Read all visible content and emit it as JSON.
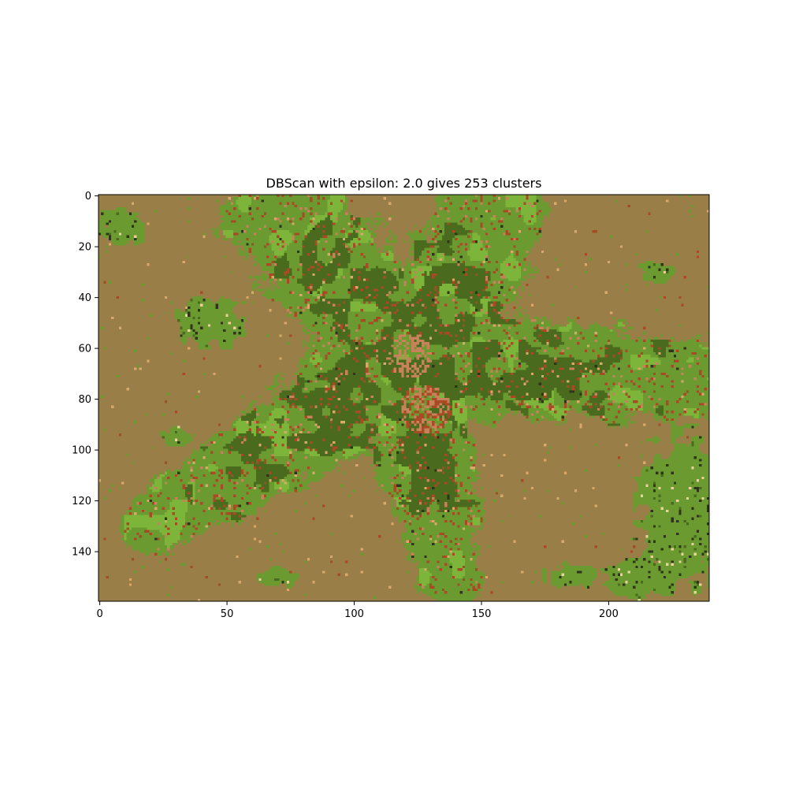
{
  "chart_data": {
    "type": "heatmap",
    "title": "DBScan with epsilon: 2.0 gives 253 clusters",
    "xlabel": "",
    "ylabel": "",
    "image_width": 240,
    "image_height": 160,
    "xlim": [
      -0.5,
      239.5
    ],
    "ylim": [
      159.5,
      -0.5
    ],
    "x_ticks": [
      0,
      50,
      100,
      150,
      200
    ],
    "y_ticks": [
      0,
      20,
      40,
      60,
      80,
      100,
      120,
      140
    ],
    "x_tick_labels": [
      "0",
      "50",
      "100",
      "150",
      "200"
    ],
    "y_tick_labels": [
      "0",
      "20",
      "40",
      "60",
      "80",
      "100",
      "120",
      "140"
    ],
    "grid": false,
    "legend": "none",
    "cluster_colors": {
      "background": "#9a7e48",
      "body_mid": "#6a9a30",
      "body_dark": "#4a6b1e",
      "body_light": "#7cb53a",
      "rust": "#a84a24",
      "salmon": "#c8825a",
      "tan": "#d9a86a",
      "darkest": "#2e3518",
      "pale": "#e8d49a"
    }
  }
}
